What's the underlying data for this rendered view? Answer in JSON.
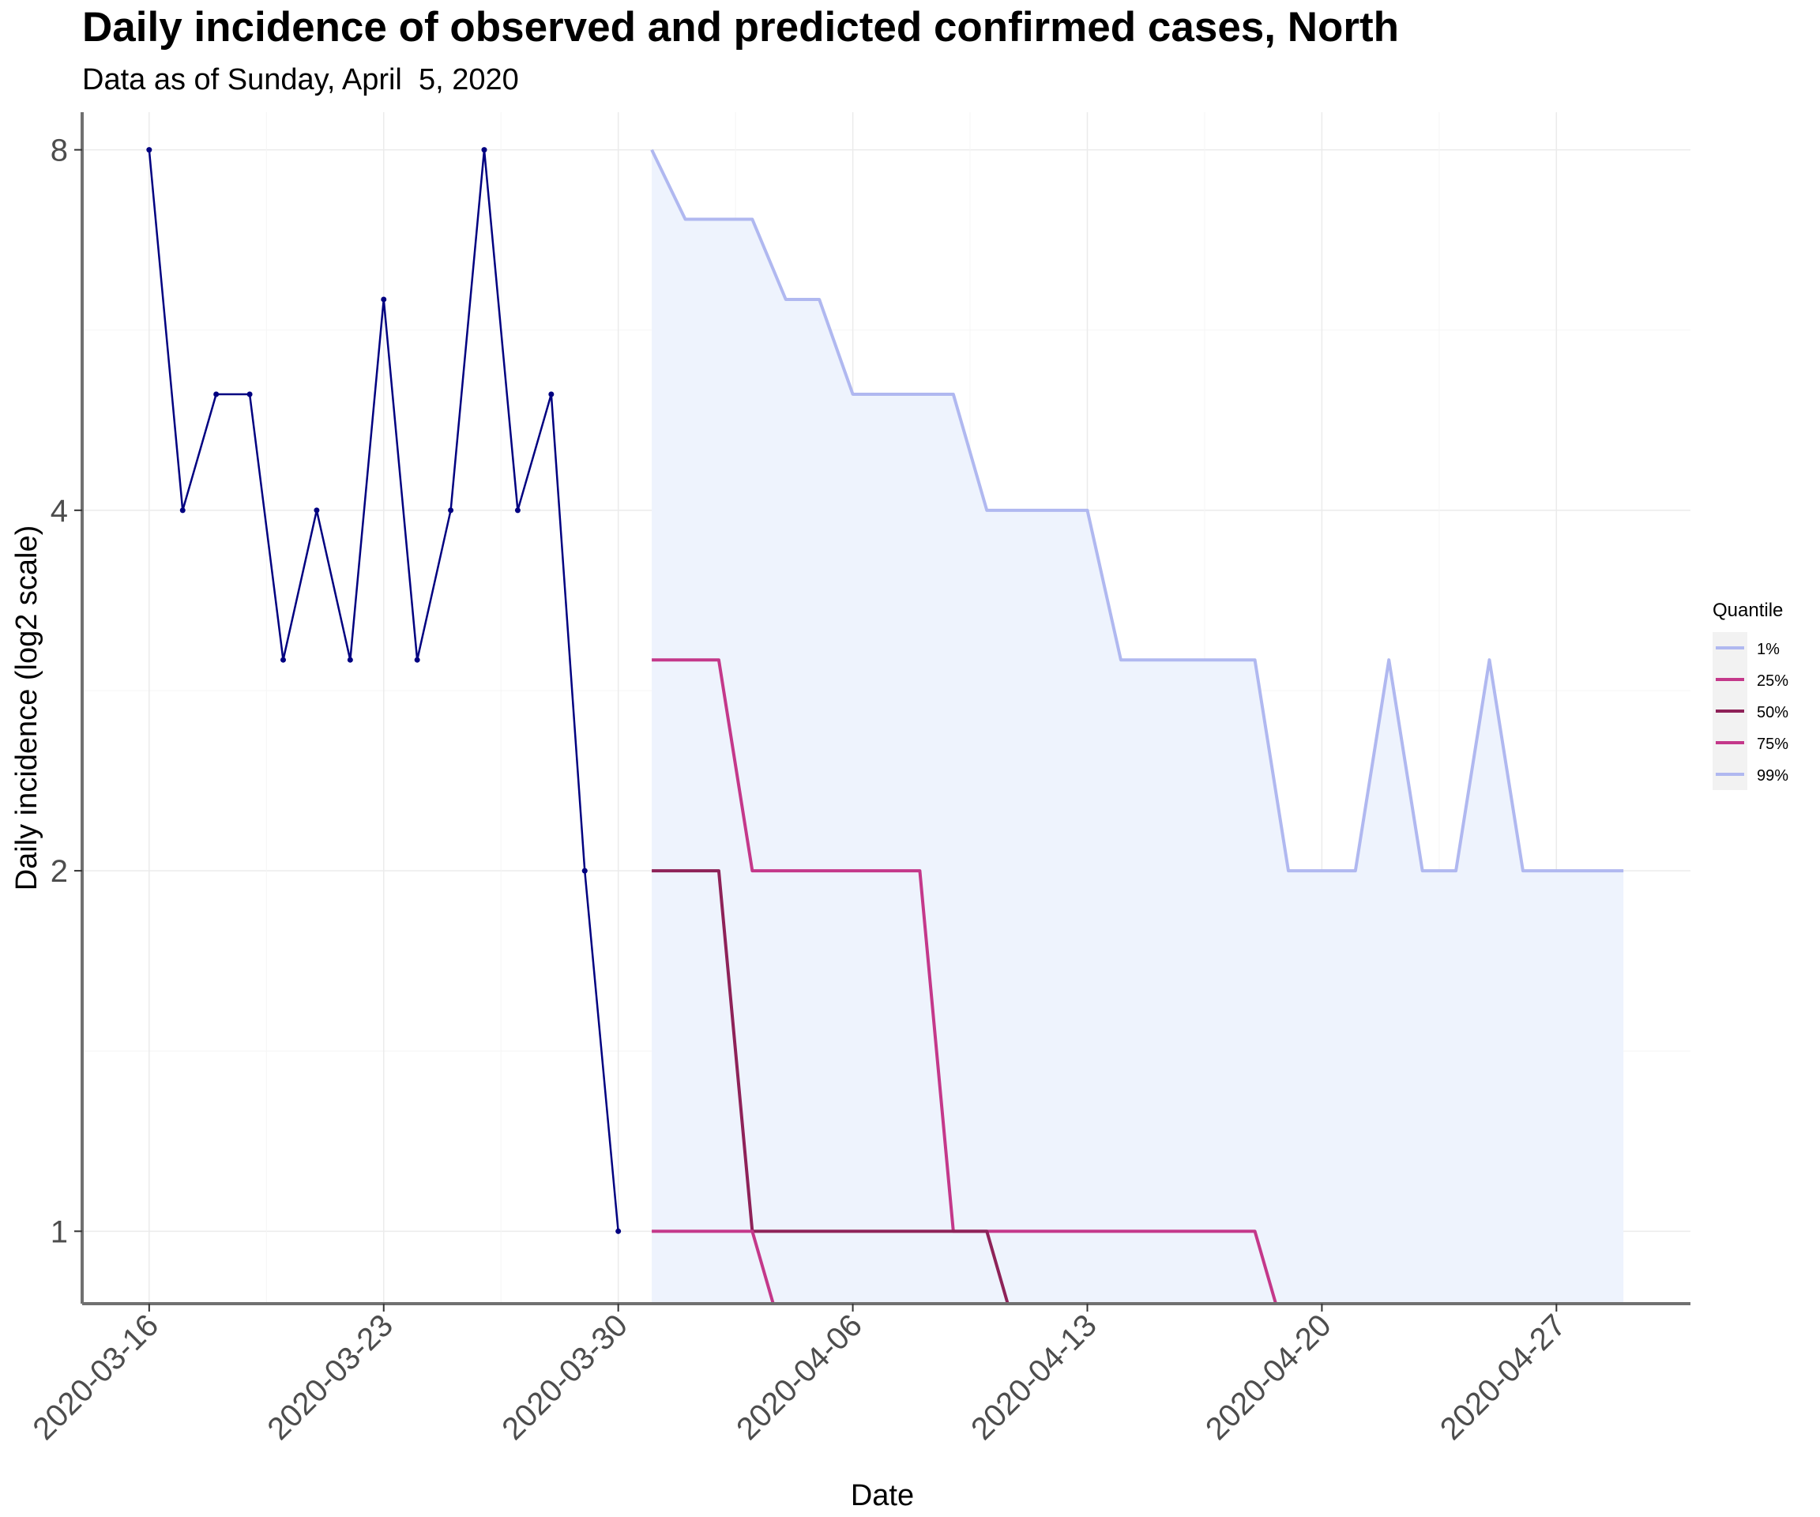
{
  "chart_data": {
    "type": "line",
    "title": "Daily incidence of observed and predicted confirmed cases,  North",
    "subtitle": "Data as of Sunday, April  5, 2020",
    "xlabel": "Date",
    "ylabel": "Daily incidence (log2 scale)",
    "y_scale": "log2",
    "ylim": [
      0.87,
      8.6
    ],
    "xlim": [
      "2020-03-14",
      "2020-05-01"
    ],
    "x_ticks": [
      "2020-03-16",
      "2020-03-23",
      "2020-03-30",
      "2020-04-06",
      "2020-04-13",
      "2020-04-20",
      "2020-04-27"
    ],
    "y_ticks": [
      1,
      2,
      4,
      8
    ],
    "y_tick_labels": [
      "1",
      "2",
      "4",
      "8"
    ],
    "grid": true,
    "legend": {
      "title": "Quantile",
      "position": "right",
      "entries": [
        {
          "label": "1%",
          "color": "#b0b8f0"
        },
        {
          "label": "25%",
          "color": "#c4388a"
        },
        {
          "label": "50%",
          "color": "#8e2258"
        },
        {
          "label": "75%",
          "color": "#c4388a"
        },
        {
          "label": "99%",
          "color": "#b0b8f0"
        }
      ]
    },
    "observed": {
      "color": "#000080",
      "x": [
        "2020-03-16",
        "2020-03-17",
        "2020-03-18",
        "2020-03-19",
        "2020-03-20",
        "2020-03-21",
        "2020-03-22",
        "2020-03-23",
        "2020-03-24",
        "2020-03-25",
        "2020-03-26",
        "2020-03-27",
        "2020-03-28",
        "2020-03-29",
        "2020-03-30"
      ],
      "y": [
        8,
        4,
        5,
        5,
        3,
        4,
        3,
        6,
        3,
        4,
        8,
        4,
        5,
        2,
        1
      ]
    },
    "forecast": {
      "band_color": "#eef3fd",
      "x": [
        "2020-03-31",
        "2020-04-01",
        "2020-04-02",
        "2020-04-03",
        "2020-04-04",
        "2020-04-05",
        "2020-04-06",
        "2020-04-07",
        "2020-04-08",
        "2020-04-09",
        "2020-04-10",
        "2020-04-11",
        "2020-04-12",
        "2020-04-13",
        "2020-04-14",
        "2020-04-15",
        "2020-04-16",
        "2020-04-17",
        "2020-04-18",
        "2020-04-19",
        "2020-04-20",
        "2020-04-21",
        "2020-04-22",
        "2020-04-23",
        "2020-04-24",
        "2020-04-25",
        "2020-04-26",
        "2020-04-27",
        "2020-04-28",
        "2020-04-29"
      ],
      "series": [
        {
          "name": "99%",
          "color": "#b0b8f0",
          "values": [
            8,
            7,
            7,
            7,
            6,
            6,
            5,
            5,
            5,
            5,
            4,
            4,
            4,
            4,
            3,
            3,
            3,
            3,
            3,
            2,
            2,
            2,
            3,
            2,
            2,
            3,
            2,
            2,
            2,
            2
          ]
        },
        {
          "name": "75%",
          "color": "#c4388a",
          "values": [
            3,
            3,
            3,
            2,
            2,
            2,
            2,
            2,
            2,
            1,
            1,
            1,
            1,
            1,
            1,
            1,
            1,
            1,
            1,
            0.8,
            0.8,
            0.8,
            0.8,
            0.8,
            0.8,
            0.8,
            0.8,
            0.8,
            0.8,
            0.8
          ]
        },
        {
          "name": "50%",
          "color": "#8e2258",
          "values": [
            2,
            2,
            2,
            1,
            1,
            1,
            1,
            1,
            1,
            1,
            1,
            0.8,
            0.8,
            0.8,
            0.8,
            0.8,
            0.8,
            0.8,
            0.8,
            0.8,
            0.8,
            0.8,
            0.8,
            0.8,
            0.8,
            0.8,
            0.8,
            0.8,
            0.8,
            0.8
          ]
        },
        {
          "name": "25%",
          "color": "#c4388a",
          "values": [
            1,
            1,
            1,
            1,
            0.8,
            0.8,
            0.8,
            0.8,
            0.8,
            0.8,
            0.8,
            0.8,
            0.8,
            0.8,
            0.8,
            0.8,
            0.8,
            0.8,
            0.8,
            0.8,
            0.8,
            0.8,
            0.8,
            0.8,
            0.8,
            0.8,
            0.8,
            0.8,
            0.8,
            0.8
          ]
        }
      ]
    }
  }
}
